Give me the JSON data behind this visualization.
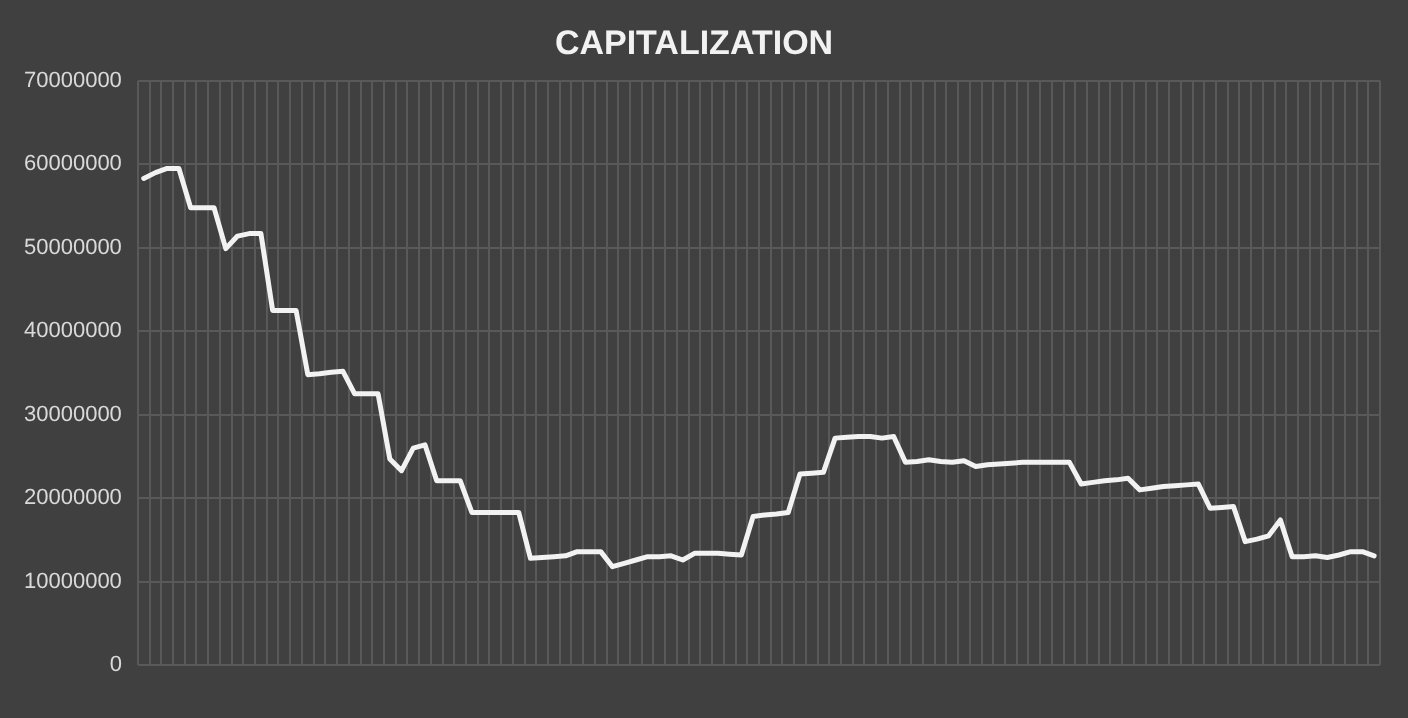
{
  "chart_data": {
    "type": "line",
    "title": "CAPITALIZATION",
    "categories": [
      null,
      null,
      null,
      null,
      null,
      null,
      null,
      null,
      null,
      null,
      null,
      null,
      null,
      null,
      null,
      null,
      null,
      null,
      null,
      null,
      null,
      null,
      null,
      null,
      null,
      null,
      null,
      null,
      null,
      null,
      null,
      null,
      null,
      null,
      null,
      null,
      null,
      null,
      null,
      null,
      null,
      null,
      null,
      null,
      null,
      null,
      null,
      null,
      null,
      null,
      null,
      null,
      null,
      null,
      null,
      null,
      null,
      null,
      null,
      null,
      null,
      null,
      null,
      null,
      null,
      null,
      null,
      null,
      null,
      null,
      null,
      null,
      null,
      null,
      null,
      null,
      null,
      null,
      null,
      null,
      null,
      null,
      null,
      null,
      null,
      null,
      null,
      null,
      null,
      null,
      null,
      null,
      null,
      null,
      null,
      null,
      null,
      null,
      null,
      null,
      null,
      null,
      null,
      null,
      null,
      null
    ],
    "series": [
      {
        "color": "#f2f2f2",
        "values": [
          58300000,
          59000000,
          59500000,
          59500000,
          54800000,
          54800000,
          54800000,
          49900000,
          51400000,
          51700000,
          51700000,
          42500000,
          42500000,
          42500000,
          34800000,
          34900000,
          35100000,
          35200000,
          32500000,
          32500000,
          32500000,
          24700000,
          23300000,
          26000000,
          26400000,
          22100000,
          22100000,
          22100000,
          18300000,
          18300000,
          18300000,
          18300000,
          18300000,
          12800000,
          12900000,
          13000000,
          13100000,
          13600000,
          13600000,
          13600000,
          11800000,
          12200000,
          12600000,
          13000000,
          13000000,
          13100000,
          12600000,
          13400000,
          13400000,
          13400000,
          13300000,
          13200000,
          17800000,
          18000000,
          18100000,
          18300000,
          22900000,
          23000000,
          23100000,
          27200000,
          27300000,
          27400000,
          27400000,
          27200000,
          27400000,
          24300000,
          24400000,
          24600000,
          24400000,
          24300000,
          24500000,
          23800000,
          24000000,
          24100000,
          24200000,
          24300000,
          24300000,
          24300000,
          24300000,
          24300000,
          21700000,
          21900000,
          22100000,
          22200000,
          22400000,
          21000000,
          21200000,
          21400000,
          21500000,
          21600000,
          21700000,
          18800000,
          18900000,
          19000000,
          14800000,
          15100000,
          15500000,
          17400000,
          13000000,
          13000000,
          13100000,
          12900000,
          13200000,
          13600000,
          13600000,
          13100000
        ]
      }
    ],
    "ylim": [
      0,
      70000000
    ],
    "yticks": [
      0,
      10000000,
      20000000,
      30000000,
      40000000,
      50000000,
      60000000,
      70000000
    ],
    "grid": true,
    "legend": false,
    "marker": "none",
    "line_style": "solid"
  }
}
